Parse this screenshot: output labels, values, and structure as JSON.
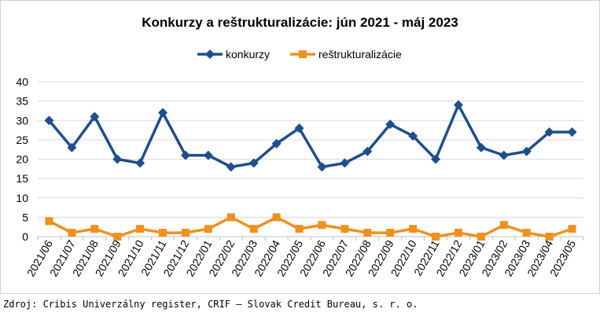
{
  "chart_data": {
    "type": "line",
    "title": "Konkurzy a reštrukturalizácie: jún 2021 - máj 2023",
    "xlabel": "",
    "ylabel": "",
    "ylim": [
      0,
      40
    ],
    "yticks": [
      0,
      5,
      10,
      15,
      20,
      25,
      30,
      35,
      40
    ],
    "grid": true,
    "legend_position": "top",
    "categories": [
      "2021/06",
      "2021/07",
      "2021/08",
      "2021/09",
      "2021/10",
      "2021/11",
      "2021/12",
      "2022/01",
      "2022/02",
      "2022/03",
      "2022/04",
      "2022/05",
      "2022/06",
      "2022/07",
      "2022/08",
      "2022/09",
      "2022/10",
      "2022/11",
      "2022/12",
      "2023/01",
      "2023/02",
      "2023/03",
      "2023/04",
      "2023/05"
    ],
    "series": [
      {
        "name": "konkurzy",
        "color": "#1f4e8c",
        "marker": "diamond",
        "values": [
          30,
          23,
          31,
          20,
          19,
          32,
          21,
          21,
          18,
          19,
          24,
          28,
          18,
          19,
          22,
          29,
          26,
          20,
          34,
          23,
          21,
          22,
          27,
          27
        ]
      },
      {
        "name": "reštrukturalizácie",
        "color": "#f0901e",
        "marker": "square",
        "values": [
          4,
          1,
          2,
          0,
          2,
          1,
          1,
          2,
          5,
          2,
          5,
          2,
          3,
          2,
          1,
          1,
          2,
          0,
          1,
          0,
          3,
          1,
          0,
          2
        ]
      }
    ]
  },
  "source": "Zdroj: Cribis Univerzálny register, CRIF – Slovak Credit Bureau, s. r. o."
}
